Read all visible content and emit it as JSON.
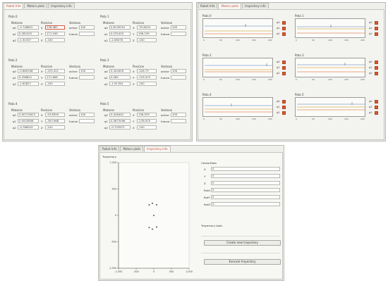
{
  "robot_window": {
    "tabs": [
      "Robot Info",
      "Motors plots",
      "trayectory info"
    ],
    "headers": {
      "motors": "Motores",
      "position": "Posicion",
      "suction": "Ventosa"
    },
    "patas": [
      {
        "title": "Pata 0",
        "motors": [
          {
            "label": "q0",
            "value": "-0.748822"
          },
          {
            "label": "q1",
            "value": "0.282425"
          },
          {
            "label": "q2",
            "value": "-1.91307"
          }
        ],
        "position": [
          {
            "label": "X",
            "value": "136.983"
          },
          {
            "label": "Y",
            "value": "171.549"
          },
          {
            "label": "Z",
            "value": "-100"
          }
        ],
        "suction": {
          "active_label": "active",
          "active_value": "100",
          "force_label": "fuerza",
          "force_value": ""
        }
      },
      {
        "title": "Pata 1",
        "motors": [
          {
            "label": "q0",
            "value": "0.8135201"
          },
          {
            "label": "q1",
            "value": "0.232425"
          },
          {
            "label": "q2",
            "value": "-2.08478"
          }
        ],
        "position": [
          {
            "label": "X",
            "value": "-33.8034"
          },
          {
            "label": "Y",
            "value": "196.159"
          },
          {
            "label": "Z",
            "value": "-100"
          }
        ],
        "suction": {
          "active_label": "active",
          "active_value": "100",
          "force_label": "fuerza",
          "force_value": ""
        }
      },
      {
        "title": "Pata 2",
        "motors": [
          {
            "label": "q0",
            "value": "-0.660348"
          },
          {
            "label": "q1",
            "value": "0.258812"
          },
          {
            "label": "q2",
            "value": "-1.62827"
          }
        ],
        "position": [
          {
            "label": "X",
            "value": "-225.421"
          },
          {
            "label": "Y",
            "value": "171.606"
          },
          {
            "label": "Z",
            "value": "-100"
          }
        ],
        "suction": {
          "active_label": "active",
          "active_value": "100",
          "force_label": "fuerza",
          "force_value": ""
        }
      },
      {
        "title": "Pata 3",
        "motors": [
          {
            "label": "q0",
            "value": "0.444409"
          },
          {
            "label": "q1",
            "value": "0.282"
          },
          {
            "label": "q2",
            "value": "-1.91784"
          }
        ],
        "position": [
          {
            "label": "X",
            "value": "-226.73"
          },
          {
            "label": "Y",
            "value": "-129.473"
          },
          {
            "label": "Z",
            "value": "-100"
          }
        ],
        "suction": {
          "active_label": "active",
          "active_value": "100",
          "force_label": "fuerza",
          "force_value": ""
        }
      },
      {
        "title": "Pata 4",
        "motors": [
          {
            "label": "q0",
            "value": "0.00715613"
          },
          {
            "label": "q1",
            "value": "0.0525858"
          },
          {
            "label": "q2",
            "value": "-0.766029"
          }
        ],
        "position": [
          {
            "label": "X",
            "value": "-53.8559"
          },
          {
            "label": "Y",
            "value": "-303.968"
          },
          {
            "label": "Z",
            "value": "-100"
          }
        ],
        "suction": {
          "active_label": "active",
          "active_value": "100",
          "force_label": "fuerza",
          "force_value": ""
        }
      },
      {
        "title": "Pata 5",
        "motors": [
          {
            "label": "q0",
            "value": "0.426442"
          },
          {
            "label": "q1",
            "value": "0.0673496"
          },
          {
            "label": "q2",
            "value": "-0.733972"
          }
        ],
        "position": [
          {
            "label": "X",
            "value": "136.979"
          },
          {
            "label": "Y",
            "value": "-278.975"
          },
          {
            "label": "Z",
            "value": "-100"
          }
        ],
        "suction": {
          "active_label": "active",
          "active_value": "100",
          "force_label": "fuerza",
          "force_value": ""
        }
      }
    ]
  },
  "plots_window": {
    "tabs": [
      "Robot Info",
      "Motors plots",
      "trayectory info"
    ],
    "legend": [
      "q0",
      "q1",
      "q2"
    ],
    "xticks": [
      "0",
      "50",
      "100",
      "150",
      "200"
    ],
    "plots": [
      {
        "title": "Pata 0"
      },
      {
        "title": "Pata 1"
      },
      {
        "title": "Pata 2"
      },
      {
        "title": "Pata 3"
      },
      {
        "title": "Pata 4"
      },
      {
        "title": "Pata 5"
      }
    ],
    "colors": {
      "q0": "#8aa0c4",
      "q1": "#d8b04a",
      "q2": "#e4875c"
    }
  },
  "trajectory_window": {
    "tabs": [
      "Robot Info",
      "Motors plots",
      "trayectory info"
    ],
    "panel_title": "Trayectory",
    "chart_data": {
      "type": "scatter",
      "x": [
        -130,
        -40,
        80,
        -130,
        -40,
        80,
        0
      ],
      "y": [
        200,
        230,
        200,
        -230,
        -260,
        -220,
        0
      ],
      "xlim": [
        -1000,
        1000
      ],
      "ylim": [
        -1000,
        1000
      ],
      "xticks": [
        "-1.000",
        "-500",
        "0",
        "500",
        "1.000"
      ],
      "yticks": [
        "1.000",
        "500",
        "0",
        "-500",
        "-1.000"
      ]
    },
    "center_title": "CenterData",
    "center_fields": [
      {
        "label": "X",
        "value": "0"
      },
      {
        "label": "Y",
        "value": "0"
      },
      {
        "label": "Z",
        "value": "0"
      },
      {
        "label": "RotX",
        "value": "0"
      },
      {
        "label": "RotY",
        "value": "0"
      },
      {
        "label": "RotZ",
        "value": "0"
      }
    ],
    "tools_title": "Trayectory tools",
    "create_button": "Create new trayectory",
    "execute_button": "Execute trayectory"
  }
}
